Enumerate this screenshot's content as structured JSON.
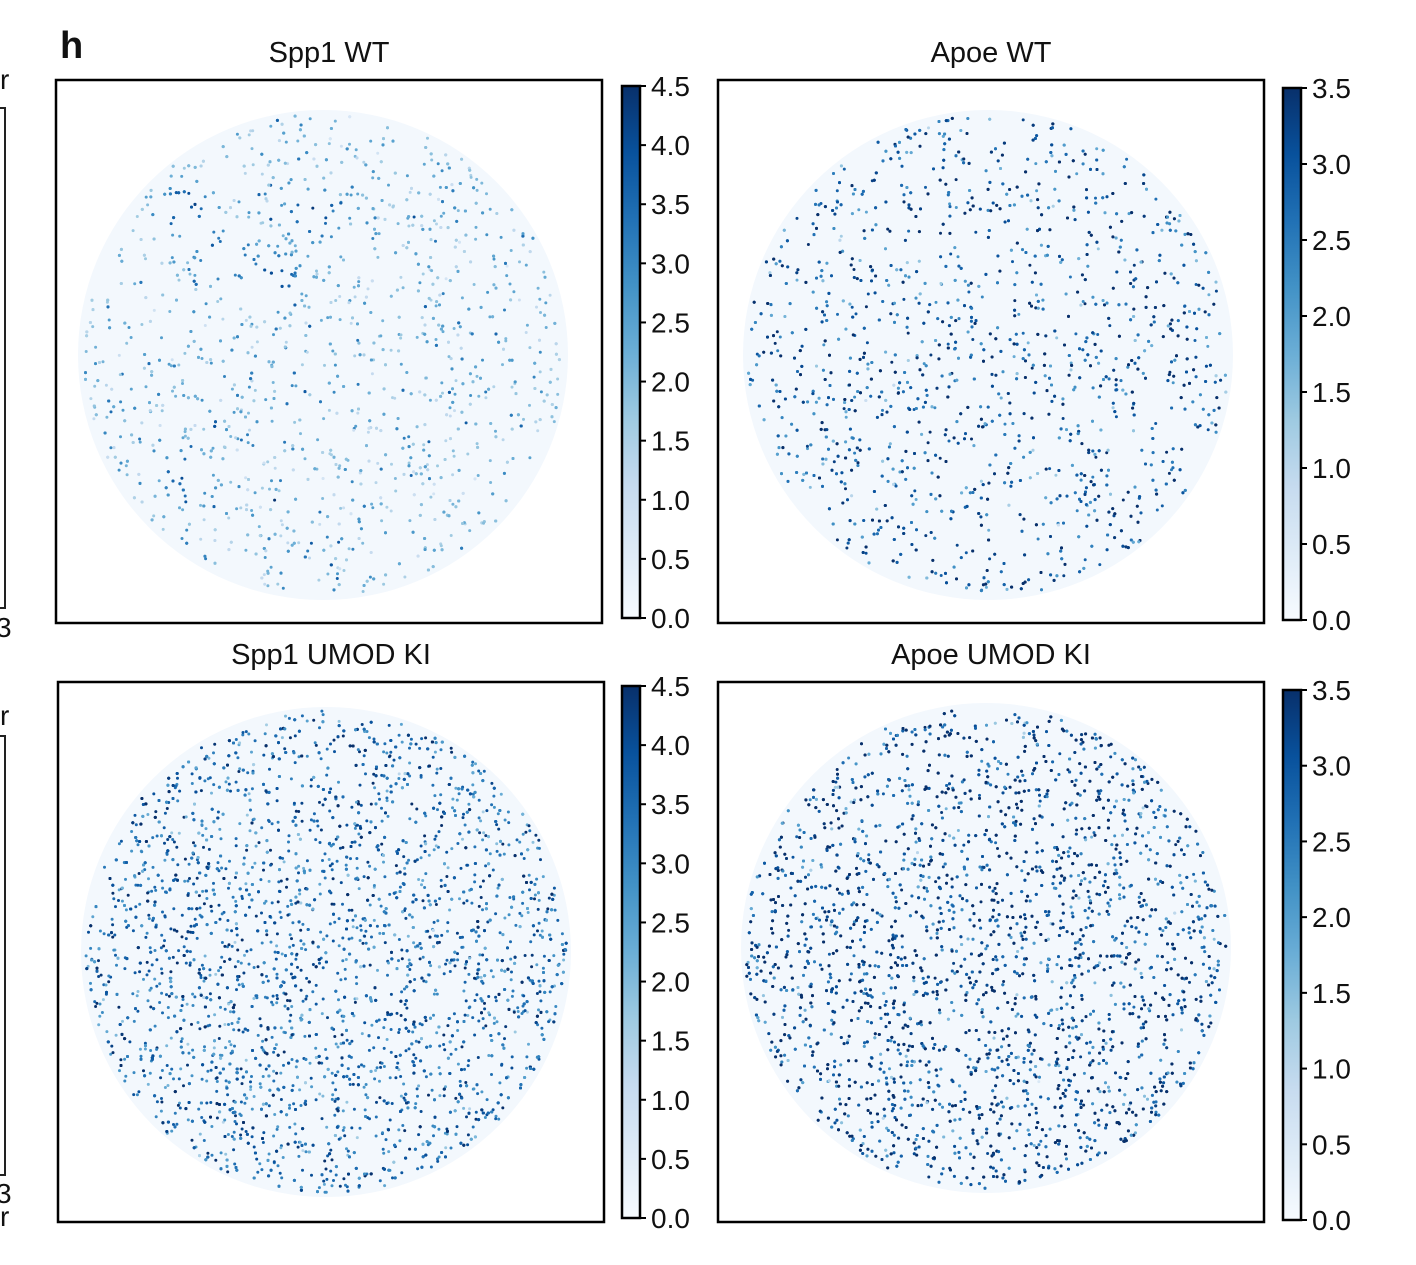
{
  "panel_label": "h",
  "colorscale": {
    "name": "Blues",
    "stops": [
      "#f7fbff",
      "#deebf7",
      "#c6dbef",
      "#9ecae1",
      "#6baed6",
      "#4292c6",
      "#2171b5",
      "#08519c",
      "#08306b"
    ]
  },
  "edge_fragments": [
    "r",
    "3",
    "r",
    "3",
    "r"
  ],
  "chart_data": [
    {
      "type": "scatter",
      "title": "Spp1 WT",
      "description_role": "spatial expression map of Spp1 in wild-type sample",
      "colorbar": {
        "vmin": 0.0,
        "vmax": 4.5,
        "ticks": [
          "0.0",
          "0.5",
          "1.0",
          "1.5",
          "2.0",
          "2.5",
          "3.0",
          "3.5",
          "4.0",
          "4.5"
        ]
      },
      "n_points": 2600,
      "base_level": 1.4,
      "hotspots": [
        {
          "x": 0.22,
          "y": 0.2,
          "v": 4.1
        },
        {
          "x": 0.3,
          "y": 0.3,
          "v": 4.2
        },
        {
          "x": 0.4,
          "y": 0.34,
          "v": 4.1
        },
        {
          "x": 0.48,
          "y": 0.22,
          "v": 4.0
        },
        {
          "x": 0.22,
          "y": 0.75,
          "v": 3.9
        }
      ]
    },
    {
      "type": "scatter",
      "title": "Apoe WT",
      "description_role": "spatial expression map of Apoe in wild-type sample",
      "colorbar": {
        "vmin": 0.0,
        "vmax": 3.5,
        "ticks": [
          "0.0",
          "0.5",
          "1.0",
          "1.5",
          "2.0",
          "2.5",
          "3.0",
          "3.5"
        ]
      },
      "n_points": 2900,
      "base_level": 2.7,
      "hotspots": [
        {
          "x": 0.28,
          "y": 0.15,
          "v": 3.5
        },
        {
          "x": 0.36,
          "y": 0.22,
          "v": 3.5
        },
        {
          "x": 0.2,
          "y": 0.9,
          "v": 3.3
        }
      ]
    },
    {
      "type": "scatter",
      "title": "Spp1 UMOD KI",
      "description_role": "spatial expression map of Spp1 in UMOD knock-in sample",
      "colorbar": {
        "vmin": 0.0,
        "vmax": 4.5,
        "ticks": [
          "0.0",
          "0.5",
          "1.0",
          "1.5",
          "2.0",
          "2.5",
          "3.0",
          "3.5",
          "4.0",
          "4.5"
        ]
      },
      "n_points": 4800,
      "base_level": 3.2,
      "hotspots": [
        {
          "x": 0.2,
          "y": 0.45,
          "v": 4.4
        },
        {
          "x": 0.45,
          "y": 0.55,
          "v": 4.3
        },
        {
          "x": 0.65,
          "y": 0.62,
          "v": 4.3
        },
        {
          "x": 0.5,
          "y": 0.2,
          "v": 4.2
        }
      ]
    },
    {
      "type": "scatter",
      "title": "Apoe UMOD KI",
      "description_role": "spatial expression map of Apoe in UMOD knock-in sample",
      "colorbar": {
        "vmin": 0.0,
        "vmax": 3.5,
        "ticks": [
          "0.0",
          "0.5",
          "1.0",
          "1.5",
          "2.0",
          "2.5",
          "3.0",
          "3.5"
        ]
      },
      "n_points": 5600,
      "base_level": 3.0,
      "hotspots": [
        {
          "x": 0.5,
          "y": 0.4,
          "v": 3.5
        },
        {
          "x": 0.3,
          "y": 0.5,
          "v": 3.5
        },
        {
          "x": 0.2,
          "y": 0.6,
          "v": 3.4
        }
      ]
    }
  ]
}
